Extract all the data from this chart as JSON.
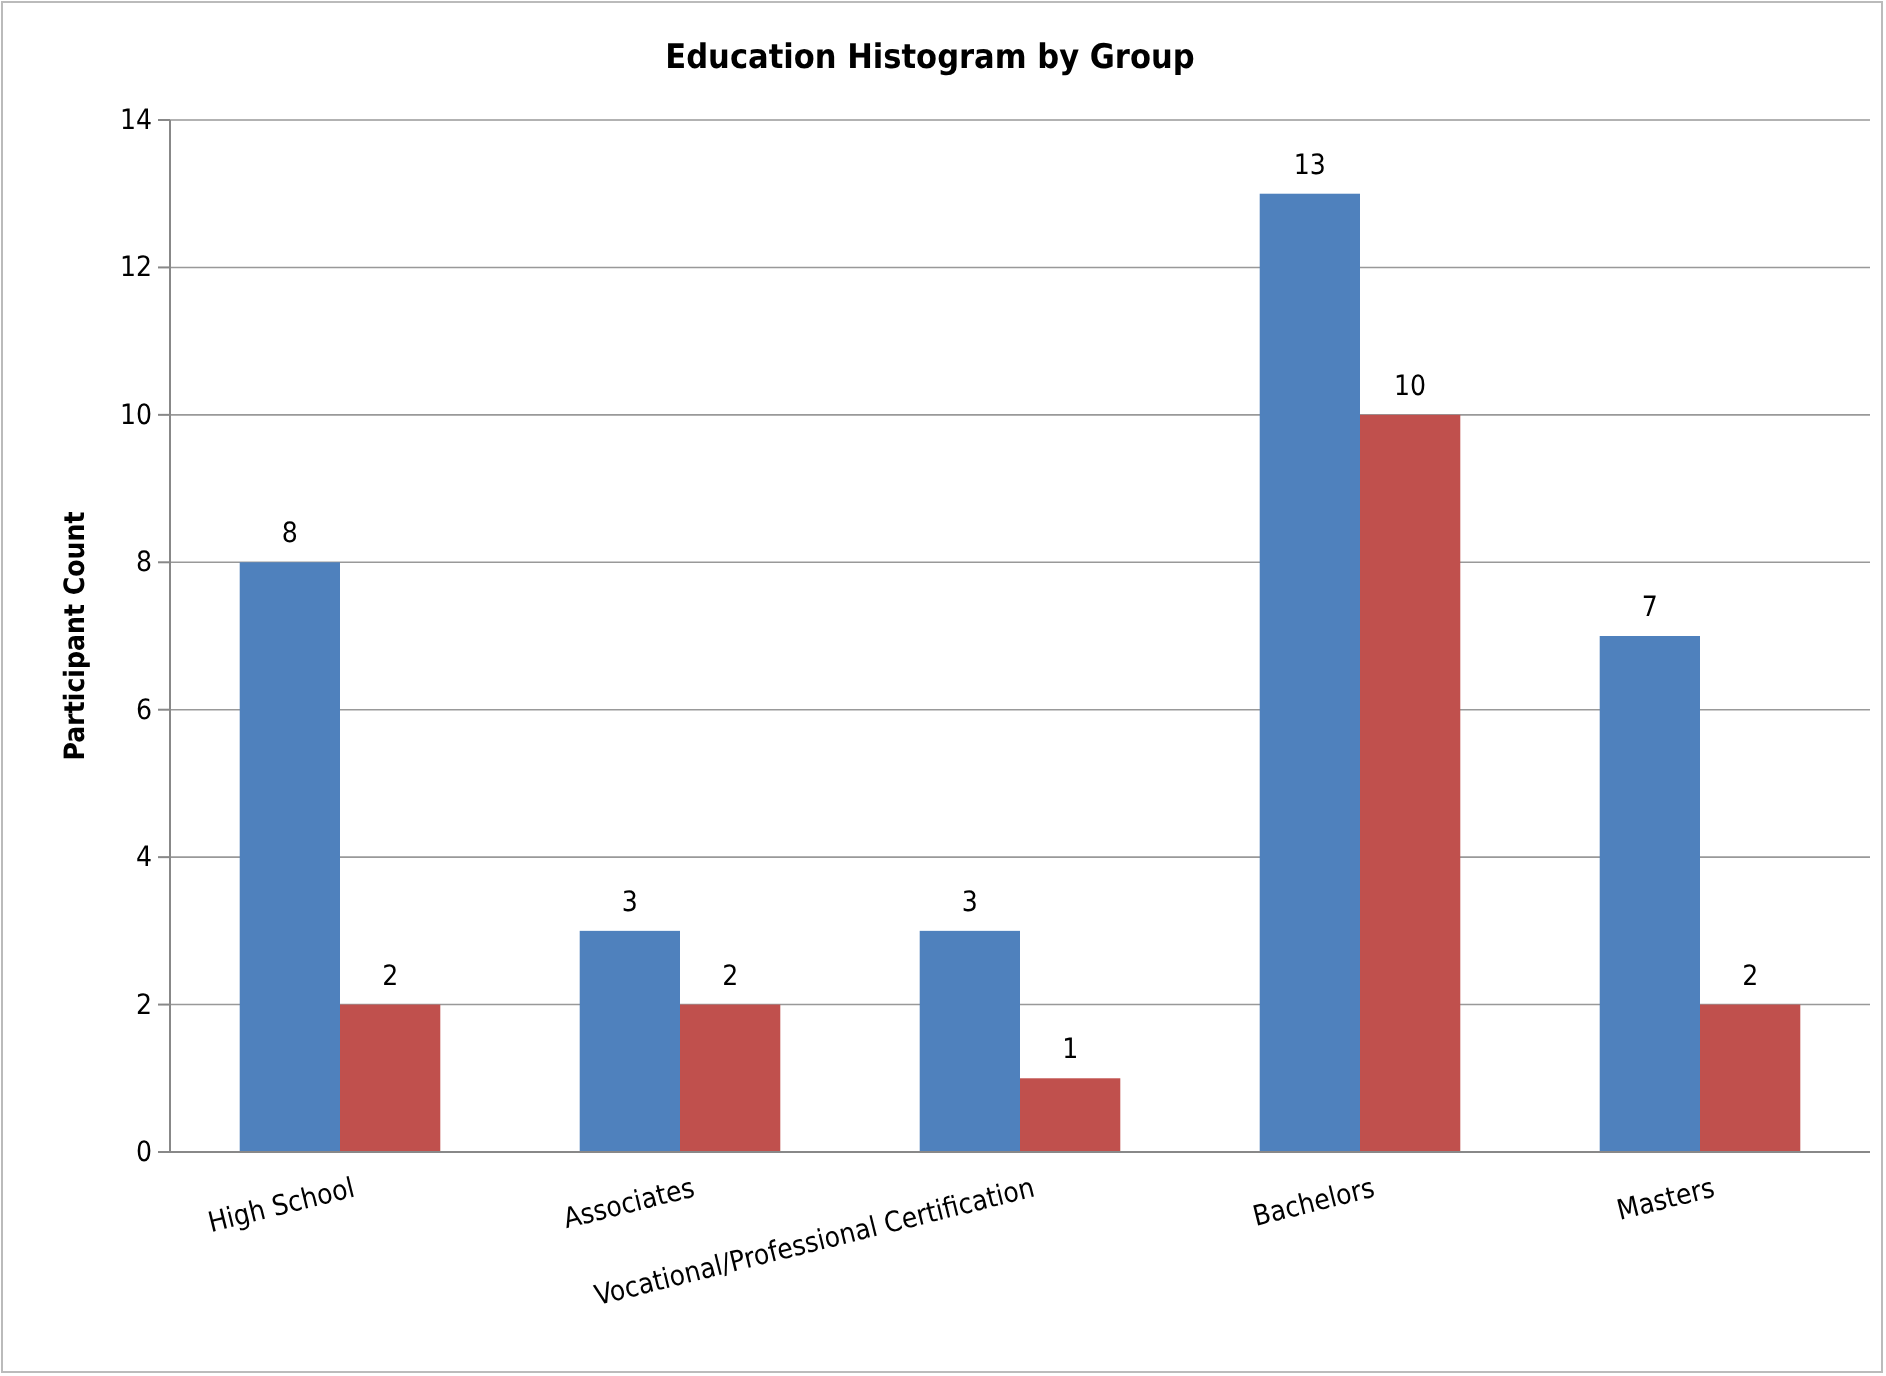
{
  "chart_data": {
    "type": "bar",
    "title": "Education Histogram by Group",
    "ylabel": "Participant Count",
    "categories": [
      "High School",
      "Associates",
      "Vocational/Professional Certification",
      "Bachelors",
      "Masters"
    ],
    "series": [
      {
        "color": "#4f81bd",
        "values": [
          8,
          3,
          3,
          13,
          7
        ]
      },
      {
        "color": "#c0504d",
        "values": [
          2,
          2,
          1,
          10,
          2
        ]
      }
    ],
    "ylim": [
      0,
      14
    ],
    "yticks": [
      0,
      2,
      4,
      6,
      8,
      10,
      12,
      14
    ],
    "grid": "y",
    "data_labels": true
  }
}
